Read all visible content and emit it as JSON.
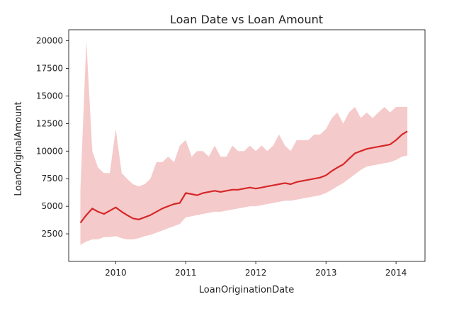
{
  "chart_data": {
    "type": "line",
    "title": "Loan Date vs Loan Amount",
    "xlabel": "LoanOriginationDate",
    "ylabel": "LoanOriginalAmount",
    "xlim": [
      "2009-05-01",
      "2014-06-01"
    ],
    "ylim": [
      0,
      21000
    ],
    "xticks": [
      "2010",
      "2011",
      "2012",
      "2013",
      "2014"
    ],
    "yticks": [
      2500,
      5000,
      7500,
      10000,
      12500,
      15000,
      17500,
      20000
    ],
    "grid": false,
    "colors": {
      "line": "#d62728",
      "band": "#f2b8b8"
    },
    "series": [
      {
        "x": [
          "2009-07",
          "2009-08",
          "2009-09",
          "2009-10",
          "2009-11",
          "2009-12",
          "2010-01",
          "2010-02",
          "2010-03",
          "2010-04",
          "2010-05",
          "2010-06",
          "2010-07",
          "2010-08",
          "2010-09",
          "2010-10",
          "2010-11",
          "2010-12",
          "2011-01",
          "2011-02",
          "2011-03",
          "2011-04",
          "2011-05",
          "2011-06",
          "2011-07",
          "2011-08",
          "2011-09",
          "2011-10",
          "2011-11",
          "2011-12",
          "2012-01",
          "2012-02",
          "2012-03",
          "2012-04",
          "2012-05",
          "2012-06",
          "2012-07",
          "2012-08",
          "2012-09",
          "2012-10",
          "2012-11",
          "2012-12",
          "2013-01",
          "2013-02",
          "2013-03",
          "2013-04",
          "2013-05",
          "2013-06",
          "2013-07",
          "2013-08",
          "2013-09",
          "2013-10",
          "2013-11",
          "2013-12",
          "2014-01",
          "2014-02",
          "2014-03"
        ],
        "values": [
          3500,
          4200,
          4800,
          4500,
          4300,
          4600,
          4900,
          4500,
          4200,
          3900,
          3800,
          4000,
          4200,
          4500,
          4800,
          5000,
          5200,
          5300,
          6200,
          6100,
          6000,
          6200,
          6300,
          6400,
          6300,
          6400,
          6500,
          6500,
          6600,
          6700,
          6600,
          6700,
          6800,
          6900,
          7000,
          7100,
          7000,
          7200,
          7300,
          7400,
          7500,
          7600,
          7800,
          8200,
          8500,
          8800,
          9300,
          9800,
          10000,
          10200,
          10300,
          10400,
          10500,
          10600,
          11000,
          11500,
          11800
        ],
        "lower": [
          1500,
          1800,
          2000,
          2000,
          2200,
          2200,
          2300,
          2100,
          2000,
          2000,
          2100,
          2300,
          2400,
          2600,
          2800,
          3000,
          3200,
          3400,
          4000,
          4100,
          4200,
          4300,
          4400,
          4500,
          4500,
          4600,
          4700,
          4800,
          4900,
          5000,
          5000,
          5100,
          5200,
          5300,
          5400,
          5500,
          5500,
          5600,
          5700,
          5800,
          5900,
          6000,
          6200,
          6500,
          6800,
          7100,
          7500,
          7900,
          8300,
          8600,
          8700,
          8800,
          8900,
          9000,
          9200,
          9500,
          9600
        ],
        "upper": [
          6500,
          20000,
          10000,
          8500,
          8000,
          8000,
          12000,
          8000,
          7500,
          7000,
          6800,
          7000,
          7500,
          9000,
          9000,
          9500,
          9000,
          10500,
          11000,
          9500,
          10000,
          10000,
          9500,
          10500,
          9500,
          9500,
          10500,
          10000,
          10000,
          10500,
          10000,
          10500,
          10000,
          10500,
          11500,
          10500,
          10000,
          11000,
          11000,
          11000,
          11500,
          11500,
          12000,
          13000,
          13500,
          12500,
          13500,
          14000,
          13000,
          13500,
          13000,
          13500,
          14000,
          13500,
          14000,
          14000,
          14000
        ]
      }
    ]
  }
}
